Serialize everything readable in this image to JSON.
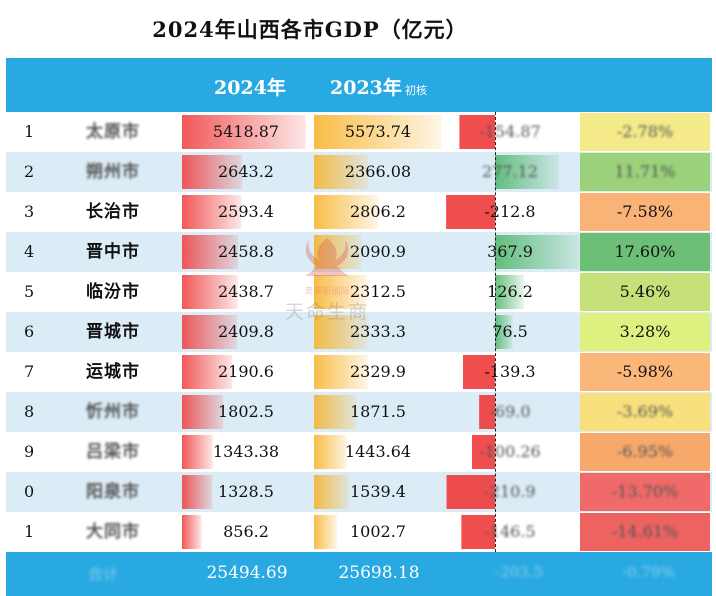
{
  "title": "2024年山西各市GDP（亿元）",
  "columns": {
    "y2024": "2024年",
    "y2023": "2023年",
    "y2023_note": "初核"
  },
  "watermark": {
    "text": "天命生商",
    "subtext": "奥莱斯国际"
  },
  "footer": {
    "total_2024": "25494.69",
    "total_2023": "25698.18",
    "change_blurred": "-203.5",
    "pct_blurred": "-0.79%",
    "label_blurred": "合计"
  },
  "colors": {
    "header": "#29a9e1",
    "row_alt": "#dcecf6",
    "bar_2024": "#ee3b3b",
    "bar_2023": "#f7b126",
    "bar_neg": "#ee3b3b",
    "bar_pos": "#4cb567"
  },
  "rows": [
    {
      "rank": "1",
      "city": "太原市",
      "v2024": "5418.87",
      "v2023": "5573.74",
      "change": "-154.87",
      "pct": "-2.78%",
      "blurred": true,
      "pct_color": "#f4ea8a"
    },
    {
      "rank": "2",
      "city": "朔州市",
      "v2024": "2643.2",
      "v2023": "2366.08",
      "change": "277.12",
      "pct": "11.71%",
      "blurred": true,
      "pct_color": "#9bd17a"
    },
    {
      "rank": "3",
      "city": "长治市",
      "v2024": "2593.4",
      "v2023": "2806.2",
      "change": "-212.8",
      "pct": "-7.58%",
      "blurred": false,
      "pct_color": "#f9b377"
    },
    {
      "rank": "4",
      "city": "晋中市",
      "v2024": "2458.8",
      "v2023": "2090.9",
      "change": "367.9",
      "pct": "17.60%",
      "blurred": false,
      "pct_color": "#6cbf75"
    },
    {
      "rank": "5",
      "city": "临汾市",
      "v2024": "2438.7",
      "v2023": "2312.5",
      "change": "126.2",
      "pct": "5.46%",
      "blurred": false,
      "pct_color": "#c6e07a"
    },
    {
      "rank": "6",
      "city": "晋城市",
      "v2024": "2409.8",
      "v2023": "2333.3",
      "change": "76.5",
      "pct": "3.28%",
      "blurred": false,
      "pct_color": "#def07f"
    },
    {
      "rank": "7",
      "city": "运城市",
      "v2024": "2190.6",
      "v2023": "2329.9",
      "change": "-139.3",
      "pct": "-5.98%",
      "blurred": false,
      "pct_color": "#fbb77a"
    },
    {
      "rank": "8",
      "city": "忻州市",
      "v2024": "1802.5",
      "v2023": "1871.5",
      "change": "-69.0",
      "pct": "-3.69%",
      "blurred": true,
      "pct_color": "#f9e07e"
    },
    {
      "rank": "9",
      "city": "吕梁市",
      "v2024": "1343.38",
      "v2023": "1443.64",
      "change": "-100.26",
      "pct": "-6.95%",
      "blurred": true,
      "pct_color": "#f6a96a"
    },
    {
      "rank": "0",
      "city": "阳泉市",
      "v2024": "1328.5",
      "v2023": "1539.4",
      "change": "-210.9",
      "pct": "-13.70%",
      "blurred": true,
      "pct_color": "#ef6a68"
    },
    {
      "rank": "1",
      "city": "大同市",
      "v2024": "856.2",
      "v2023": "1002.7",
      "change": "-146.5",
      "pct": "-14.61%",
      "blurred": true,
      "pct_color": "#ec6361"
    }
  ],
  "chart_data": {
    "type": "table",
    "title": "2024年山西各市GDP（亿元）",
    "columns": [
      "2024年",
      "2023年 初核"
    ],
    "categories": [
      "1",
      "2",
      "3",
      "4",
      "5",
      "6",
      "7",
      "8",
      "9",
      "0",
      "1"
    ],
    "series": [
      {
        "name": "2024年",
        "values": [
          5418.87,
          2643.2,
          2593.4,
          2458.8,
          2438.7,
          2409.8,
          2190.6,
          1802.5,
          1343.38,
          1328.5,
          856.2
        ]
      },
      {
        "name": "2023年",
        "values": [
          5573.74,
          2366.08,
          2806.2,
          2090.9,
          2312.5,
          2333.3,
          2329.9,
          1871.5,
          1443.64,
          1539.4,
          1002.7
        ]
      }
    ],
    "change": [
      -154.87,
      277.12,
      -212.8,
      367.9,
      126.2,
      76.5,
      -139.3,
      -69.0,
      -100.26,
      -210.9,
      -146.5
    ],
    "change_pct": [
      -2.78,
      11.71,
      -7.58,
      17.6,
      5.46,
      3.28,
      -5.98,
      -3.69,
      -6.95,
      -13.7,
      -14.61
    ],
    "totals": {
      "2024年": 25494.69,
      "2023年": 25698.18
    }
  }
}
